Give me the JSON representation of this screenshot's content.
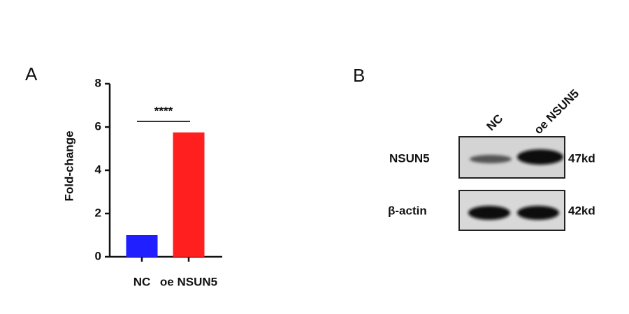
{
  "chart_data": {
    "type": "bar",
    "panel_label": "A",
    "ylabel": "Fold-change",
    "categories": [
      "NC",
      "oe NSUN5"
    ],
    "values": [
      1.0,
      5.75
    ],
    "colors": [
      "#1f1fff",
      "#ff1f1f"
    ],
    "ylim": [
      0,
      8
    ],
    "yticks": [
      0,
      2,
      4,
      6,
      8
    ],
    "annotation": "****"
  },
  "panel_b": {
    "panel_label": "B",
    "lanes": [
      "NC",
      "oe NSUN5"
    ],
    "rows": [
      {
        "label": "NSUN5",
        "size": "47kd"
      },
      {
        "label": "β-actin",
        "size": "42kd"
      }
    ]
  }
}
